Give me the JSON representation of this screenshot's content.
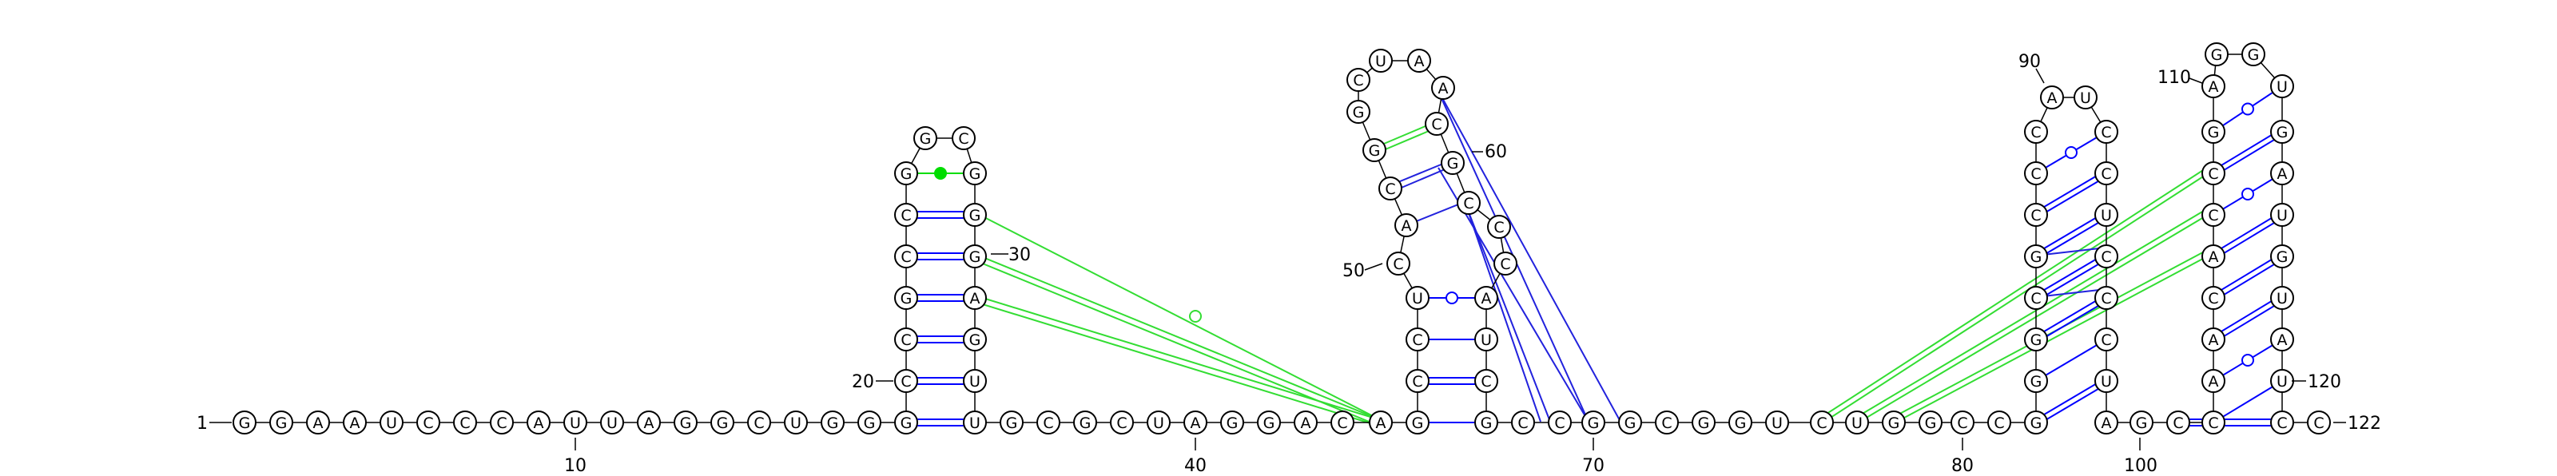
{
  "sequence": "GGAAUCCCAUUAGGCUGGGCCGCCGGCGGGAGUUGCGCUAGGACAGCCUCACGGCUAACGCCCAUCGCCGGCGGUCUGGCCGGGCGCCCAUCCUCCCUAGCCAACACCGAGGUGAUGUAUCC",
  "labels": {
    "n1": "1",
    "n10": "10",
    "n20": "20",
    "n30": "30",
    "n40": "40",
    "n50": "50",
    "n60": "60",
    "n70": "70",
    "n80": "80",
    "n90": "90",
    "n100": "100",
    "n110": "110",
    "n120": "120",
    "n122": "122"
  },
  "colors": {
    "backbone": "#000000",
    "canonical_pair": "#0000ff",
    "noncanonical_pair": "#00dd00"
  },
  "pairs_note": "helices and pseudoknot interactions drawn as connectors"
}
